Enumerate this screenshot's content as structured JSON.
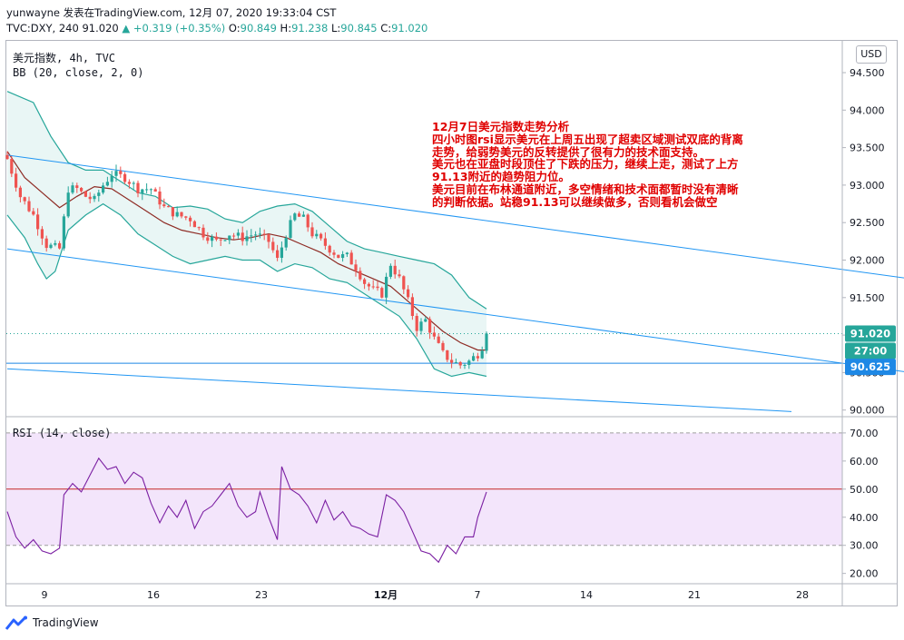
{
  "header": {
    "line1": "yunwayne 发表在TradingView.com, 12月 07, 2020 19:33:04 CST",
    "symbol_line": "TVC:DXY, 240 91.020",
    "change_arrow": "▲",
    "change": "+0.319 (+0.35%)",
    "o_label": "O:",
    "o_value": "90.849",
    "h_label": "H:",
    "h_value": "91.238",
    "l_label": "L:",
    "l_value": "90.845",
    "c_label": "C:",
    "c_value": "91.020"
  },
  "legend": {
    "title": "美元指数, 4h, TVC",
    "bb": "BB (20, close, 2, 0)",
    "rsi": "RSI (14, close)"
  },
  "currency_button": "USD",
  "annotation": {
    "lines": [
      "12月7日美元指数走势分析",
      "四小时图rsi显示美元在上周五出现了超卖区域测试双底的背离",
      "走势，给弱势美元的反转提供了很有力的技术面支持。",
      "美元也在亚盘时段顶住了下跌的压力，继续上走，测试了上方",
      "91.13附近的趋势阻力位。",
      "美元目前在布林通道附近，多空情绪和技术面都暂时没有清晰",
      "的判断依据。站稳91.13可以继续做多，否则看机会做空"
    ]
  },
  "badges": {
    "last_price": "91.020",
    "countdown": "27:00",
    "level": "90.625"
  },
  "footer": {
    "brand": "TradingView"
  },
  "colors": {
    "up": "#26a69a",
    "down": "#ef5350",
    "bb_band": "#26a69a",
    "bb_fill": "#e0f2f1",
    "basis": "#8e2b24",
    "channel": "#2196f3",
    "rsi_line": "#7b1fa2",
    "rsi_fill": "#f3e5fb",
    "rsi_mid": "#c62828",
    "annotation": "#e00000"
  },
  "chart_data": [
    {
      "type": "candlestick",
      "title": "美元指数, 4h, TVC",
      "x_ticks": [
        "9",
        "16",
        "23",
        "12月",
        "7",
        "14",
        "21",
        "28"
      ],
      "y_ticks": [
        "94.500",
        "94.000",
        "93.500",
        "93.000",
        "92.500",
        "92.000",
        "91.500",
        "91.000",
        "90.500",
        "90.000"
      ],
      "ylim": [
        90.0,
        94.7
      ],
      "close_path": [
        [
          0,
          93.35
        ],
        [
          3,
          92.85
        ],
        [
          6,
          92.6
        ],
        [
          9,
          92.2
        ],
        [
          12,
          92.15
        ],
        [
          14,
          92.95
        ],
        [
          16,
          92.95
        ],
        [
          18,
          92.85
        ],
        [
          20,
          92.8
        ],
        [
          22,
          93.0
        ],
        [
          24,
          93.15
        ],
        [
          27,
          93.1
        ],
        [
          30,
          92.95
        ],
        [
          33,
          92.95
        ],
        [
          36,
          92.7
        ],
        [
          39,
          92.6
        ],
        [
          42,
          92.55
        ],
        [
          45,
          92.35
        ],
        [
          48,
          92.25
        ],
        [
          51,
          92.35
        ],
        [
          54,
          92.3
        ],
        [
          57,
          92.35
        ],
        [
          60,
          92.25
        ],
        [
          62,
          92.0
        ],
        [
          64,
          92.35
        ],
        [
          66,
          92.6
        ],
        [
          68,
          92.55
        ],
        [
          70,
          92.35
        ],
        [
          72,
          92.25
        ],
        [
          74,
          92.15
        ],
        [
          76,
          92.05
        ],
        [
          78,
          92.05
        ],
        [
          80,
          91.9
        ],
        [
          82,
          91.7
        ],
        [
          84,
          91.6
        ],
        [
          86,
          91.55
        ],
        [
          88,
          91.95
        ],
        [
          90,
          91.75
        ],
        [
          92,
          91.45
        ],
        [
          94,
          91.1
        ],
        [
          96,
          91.2
        ],
        [
          98,
          90.95
        ],
        [
          100,
          90.75
        ],
        [
          102,
          90.65
        ],
        [
          104,
          90.6
        ],
        [
          106,
          90.65
        ],
        [
          108,
          90.75
        ],
        [
          109,
          90.85
        ],
        [
          110,
          91.02
        ]
      ],
      "bb_upper_path": [
        [
          0,
          94.25
        ],
        [
          6,
          94.1
        ],
        [
          10,
          93.65
        ],
        [
          14,
          93.3
        ],
        [
          18,
          93.2
        ],
        [
          22,
          93.2
        ],
        [
          26,
          93.05
        ],
        [
          30,
          92.9
        ],
        [
          34,
          92.85
        ],
        [
          38,
          92.7
        ],
        [
          42,
          92.72
        ],
        [
          46,
          92.68
        ],
        [
          50,
          92.55
        ],
        [
          54,
          92.5
        ],
        [
          58,
          92.65
        ],
        [
          62,
          92.72
        ],
        [
          66,
          92.75
        ],
        [
          70,
          92.65
        ],
        [
          74,
          92.45
        ],
        [
          78,
          92.25
        ],
        [
          82,
          92.15
        ],
        [
          86,
          92.1
        ],
        [
          90,
          92.05
        ],
        [
          94,
          92.0
        ],
        [
          98,
          91.95
        ],
        [
          102,
          91.8
        ],
        [
          106,
          91.5
        ],
        [
          110,
          91.35
        ]
      ],
      "bb_lower_path": [
        [
          0,
          92.6
        ],
        [
          4,
          92.3
        ],
        [
          7,
          91.95
        ],
        [
          9,
          91.75
        ],
        [
          11,
          91.85
        ],
        [
          14,
          92.4
        ],
        [
          18,
          92.6
        ],
        [
          22,
          92.75
        ],
        [
          26,
          92.6
        ],
        [
          30,
          92.35
        ],
        [
          34,
          92.2
        ],
        [
          38,
          92.05
        ],
        [
          42,
          91.95
        ],
        [
          46,
          92.0
        ],
        [
          50,
          92.05
        ],
        [
          54,
          92.0
        ],
        [
          58,
          92.0
        ],
        [
          62,
          91.85
        ],
        [
          66,
          91.95
        ],
        [
          70,
          91.9
        ],
        [
          74,
          91.75
        ],
        [
          78,
          91.7
        ],
        [
          82,
          91.55
        ],
        [
          86,
          91.4
        ],
        [
          90,
          91.25
        ],
        [
          94,
          90.95
        ],
        [
          98,
          90.55
        ],
        [
          100,
          90.5
        ],
        [
          102,
          90.45
        ],
        [
          106,
          90.5
        ],
        [
          110,
          90.45
        ]
      ],
      "bb_basis_path": [
        [
          0,
          93.45
        ],
        [
          4,
          93.1
        ],
        [
          8,
          92.9
        ],
        [
          12,
          92.7
        ],
        [
          16,
          92.85
        ],
        [
          20,
          92.98
        ],
        [
          24,
          92.95
        ],
        [
          28,
          92.8
        ],
        [
          32,
          92.65
        ],
        [
          36,
          92.5
        ],
        [
          40,
          92.4
        ],
        [
          44,
          92.35
        ],
        [
          48,
          92.3
        ],
        [
          52,
          92.27
        ],
        [
          56,
          92.3
        ],
        [
          60,
          92.35
        ],
        [
          64,
          92.3
        ],
        [
          68,
          92.2
        ],
        [
          72,
          92.1
        ],
        [
          76,
          91.95
        ],
        [
          80,
          91.85
        ],
        [
          84,
          91.75
        ],
        [
          88,
          91.65
        ],
        [
          92,
          91.45
        ],
        [
          96,
          91.25
        ],
        [
          100,
          91.05
        ],
        [
          104,
          90.9
        ],
        [
          108,
          90.8
        ],
        [
          110,
          90.8
        ]
      ],
      "channel_lines": [
        {
          "from": [
            0,
            93.4
          ],
          "to": [
            220,
            91.65
          ]
        },
        {
          "from": [
            0,
            92.15
          ],
          "to": [
            220,
            90.4
          ]
        },
        {
          "from": [
            0,
            90.55
          ],
          "to": [
            180,
            89.98
          ]
        }
      ],
      "level_line": 90.625,
      "last_price": 91.02
    },
    {
      "type": "line",
      "title": "RSI (14, close)",
      "y_ticks": [
        "70.00",
        "60.00",
        "50.00",
        "40.00",
        "30.00",
        "20.00"
      ],
      "ylim": [
        18,
        73
      ],
      "upper_band": 70,
      "middle": 50,
      "lower_band": 30,
      "values": [
        [
          0,
          42
        ],
        [
          2,
          33
        ],
        [
          4,
          29
        ],
        [
          6,
          32
        ],
        [
          8,
          28
        ],
        [
          10,
          27
        ],
        [
          12,
          29
        ],
        [
          13,
          48
        ],
        [
          15,
          52
        ],
        [
          17,
          49
        ],
        [
          19,
          55
        ],
        [
          21,
          61
        ],
        [
          23,
          57
        ],
        [
          25,
          58
        ],
        [
          27,
          52
        ],
        [
          29,
          56
        ],
        [
          31,
          54
        ],
        [
          33,
          45
        ],
        [
          35,
          38
        ],
        [
          37,
          44
        ],
        [
          39,
          40
        ],
        [
          41,
          46
        ],
        [
          43,
          36
        ],
        [
          45,
          42
        ],
        [
          47,
          44
        ],
        [
          49,
          48
        ],
        [
          51,
          52
        ],
        [
          53,
          44
        ],
        [
          55,
          40
        ],
        [
          57,
          42
        ],
        [
          58,
          49
        ],
        [
          60,
          40
        ],
        [
          62,
          32
        ],
        [
          63,
          58
        ],
        [
          65,
          50
        ],
        [
          67,
          48
        ],
        [
          69,
          44
        ],
        [
          71,
          38
        ],
        [
          73,
          46
        ],
        [
          75,
          39
        ],
        [
          77,
          42
        ],
        [
          79,
          37
        ],
        [
          81,
          36
        ],
        [
          83,
          34
        ],
        [
          85,
          33
        ],
        [
          87,
          48
        ],
        [
          89,
          46
        ],
        [
          91,
          42
        ],
        [
          93,
          35
        ],
        [
          95,
          28
        ],
        [
          97,
          27
        ],
        [
          99,
          24
        ],
        [
          101,
          30
        ],
        [
          103,
          27
        ],
        [
          105,
          33
        ],
        [
          107,
          33
        ],
        [
          108,
          40
        ],
        [
          110,
          49
        ]
      ]
    }
  ]
}
